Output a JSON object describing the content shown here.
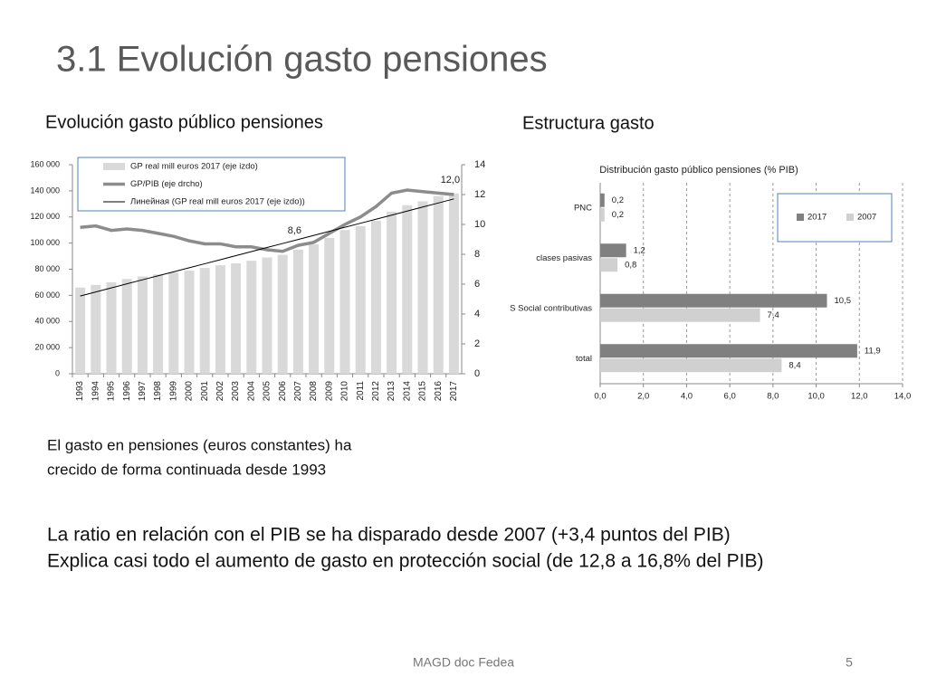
{
  "slide": {
    "title": "3.1 Evolución gasto pensiones",
    "headings": [
      "Evolución gasto público pensiones",
      "Estructura gasto"
    ],
    "note": [
      "El gasto en pensiones (euros constantes) ha",
      "crecido de forma continuada desde 1993"
    ],
    "highlights": [
      "La ratio en relación con el PIB se ha disparado desde 2007 (+3,4 puntos del PIB)",
      "Explica casi todo el aumento de gasto en protección social (de 12,8 a 16,8% del PIB)"
    ],
    "footer": "MAGD doc Fedea",
    "page_number": "5"
  },
  "chart_data": [
    {
      "type": "bar-line",
      "categories": [
        "1993",
        "1994",
        "1995",
        "1996",
        "1997",
        "1998",
        "1999",
        "2000",
        "2001",
        "2002",
        "2003",
        "2004",
        "2005",
        "2006",
        "2007",
        "2008",
        "2009",
        "2010",
        "2011",
        "2012",
        "2013",
        "2014",
        "2015",
        "2016",
        "2017"
      ],
      "series": [
        {
          "name": "GP real mill euros 2017 (eje izdo)",
          "type": "bar",
          "color": "#d9d9d9",
          "values": [
            66000,
            68000,
            70000,
            72500,
            74500,
            76000,
            77500,
            79000,
            81000,
            83000,
            84500,
            86500,
            89000,
            91000,
            95000,
            99000,
            104000,
            110000,
            113000,
            117000,
            124000,
            129000,
            132000,
            136000,
            138000
          ]
        },
        {
          "name": "GP/PIB (eje drcho)",
          "type": "line",
          "axis": "y2",
          "color": "#8c8c8c",
          "values": [
            9.8,
            9.9,
            9.6,
            9.7,
            9.6,
            9.4,
            9.2,
            8.9,
            8.7,
            8.7,
            8.5,
            8.5,
            8.3,
            8.2,
            8.6,
            8.8,
            9.4,
            10.0,
            10.5,
            11.2,
            12.1,
            12.3,
            12.2,
            12.1,
            12.0
          ],
          "value_labels": [
            null,
            null,
            null,
            null,
            null,
            null,
            null,
            null,
            null,
            null,
            null,
            null,
            null,
            null,
            "8,6",
            null,
            null,
            null,
            null,
            null,
            null,
            null,
            null,
            null,
            "12,0"
          ]
        },
        {
          "name": "Линейная (GP real mill euros 2017 (eje izdo))",
          "type": "line",
          "color": "#000000",
          "values": [
            59500,
            62600,
            65700,
            68800,
            71900,
            75000,
            78000,
            81100,
            84200,
            87300,
            90400,
            93500,
            96600,
            99700,
            102800,
            105900,
            109000,
            112100,
            115200,
            118300,
            121400,
            124500,
            127600,
            130700,
            133800
          ]
        }
      ],
      "ylim": [
        0,
        160000
      ],
      "yticks": [
        0,
        {
          "value": 20000,
          "label": "20 000"
        },
        {
          "value": 40000,
          "label": "40 000"
        },
        {
          "value": 60000,
          "label": "60 000"
        },
        {
          "value": 80000,
          "label": "80 000"
        },
        {
          "value": 100000,
          "label": "100 000"
        },
        {
          "value": 120000,
          "label": "120 000"
        },
        {
          "value": 140000,
          "label": "140 000"
        },
        {
          "value": 160000,
          "label": "160 000"
        }
      ],
      "y2lim": [
        0,
        14
      ],
      "y2ticks": [
        0,
        2,
        4,
        6,
        8,
        10,
        12,
        14
      ],
      "legend": "upper left"
    },
    {
      "type": "hbar",
      "title": "Distribución gasto público pensiones (% PIB)",
      "categories": [
        "PNC",
        "clases pasivas",
        "S Social contributivas",
        "total"
      ],
      "series": [
        {
          "name": "2017",
          "color": "#808080",
          "values": [
            0.2,
            1.2,
            10.5,
            11.9
          ],
          "value_labels": [
            "0,2",
            "1,2",
            "10,5",
            "11,9"
          ]
        },
        {
          "name": "2007",
          "color": "#d0d0d0",
          "values": [
            0.2,
            0.8,
            7.4,
            8.4
          ],
          "value_labels": [
            "0,2",
            "0,8",
            "7,4",
            "8,4"
          ]
        }
      ],
      "xlim": [
        0,
        14
      ],
      "xticks": [
        {
          "value": 0,
          "label": "0,0"
        },
        {
          "value": 2,
          "label": "2,0"
        },
        {
          "value": 4,
          "label": "4,0"
        },
        {
          "value": 6,
          "label": "6,0"
        },
        {
          "value": 8,
          "label": "8,0"
        },
        {
          "value": 10,
          "label": "10,0"
        },
        {
          "value": 12,
          "label": "12,0"
        },
        {
          "value": 14,
          "label": "14,0"
        }
      ],
      "grid": true,
      "legend": "upper right"
    }
  ]
}
